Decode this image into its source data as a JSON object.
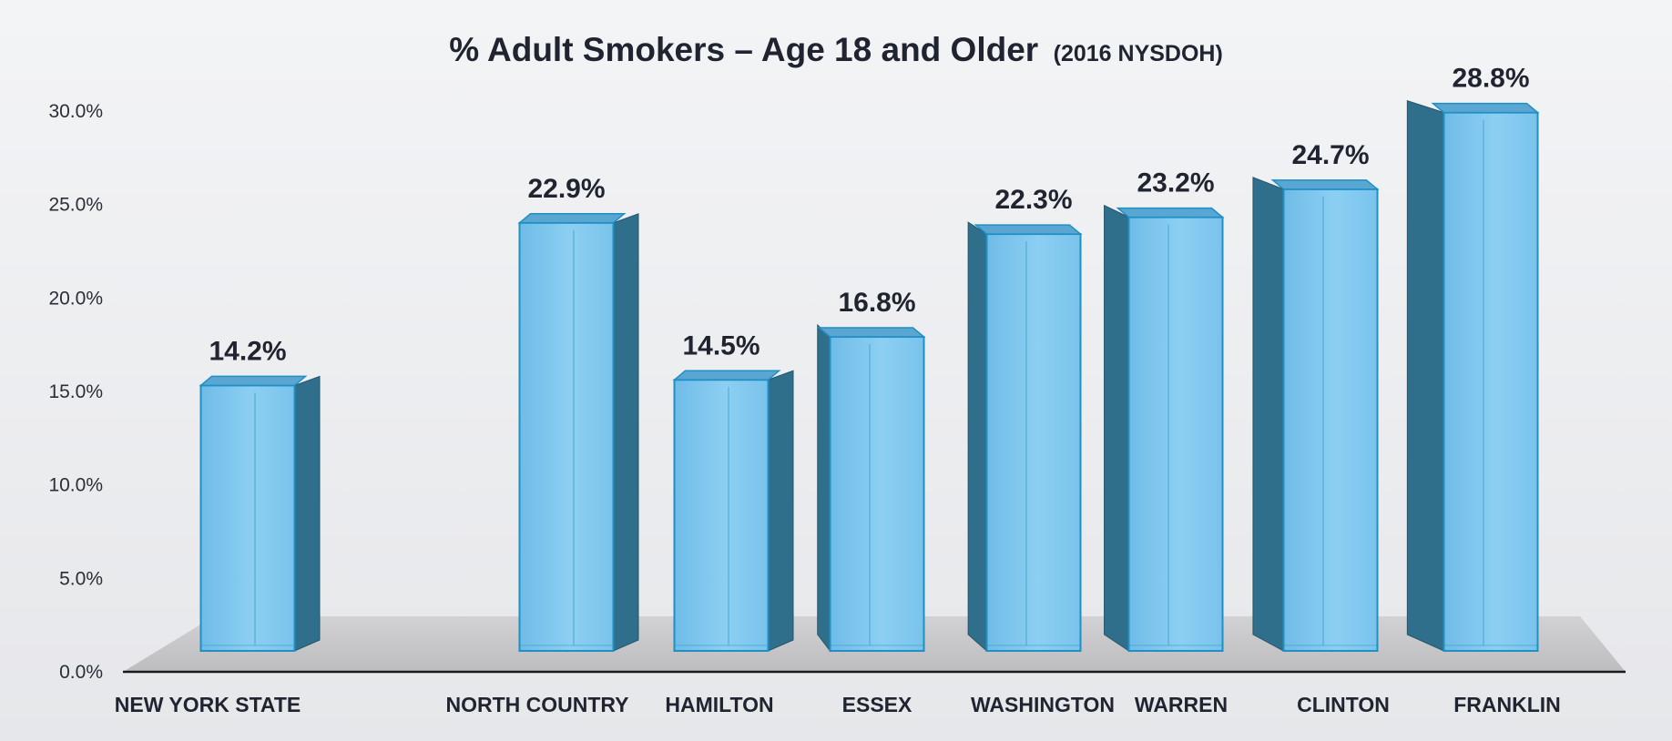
{
  "chart_data": {
    "type": "bar",
    "title": "% Adult Smokers – Age 18 and Older",
    "subtitle": "(2016 NYSDOH)",
    "xlabel": "",
    "ylabel": "",
    "ylim": [
      0,
      30
    ],
    "yticks": [
      "0.0%",
      "5.0%",
      "10.0%",
      "15.0%",
      "20.0%",
      "25.0%",
      "30.0%"
    ],
    "categories": [
      "NEW YORK STATE",
      "NORTH COUNTRY",
      "HAMILTON",
      "ESSEX",
      "WASHINGTON",
      "WARREN",
      "CLINTON",
      "FRANKLIN"
    ],
    "values": [
      14.2,
      22.9,
      14.5,
      16.8,
      22.3,
      23.2,
      24.7,
      28.8
    ],
    "data_labels": [
      "14.2%",
      "22.9%",
      "14.5%",
      "16.8%",
      "22.3%",
      "23.2%",
      "24.7%",
      "28.8%"
    ],
    "grid": false,
    "legend": "none",
    "colors": {
      "bar_front": "#7cc4ec",
      "bar_side": "#2f6f8c",
      "bar_edge": "#1f8fc4",
      "floor": "#c9c9cb",
      "axis": "#1a1a1a"
    }
  }
}
